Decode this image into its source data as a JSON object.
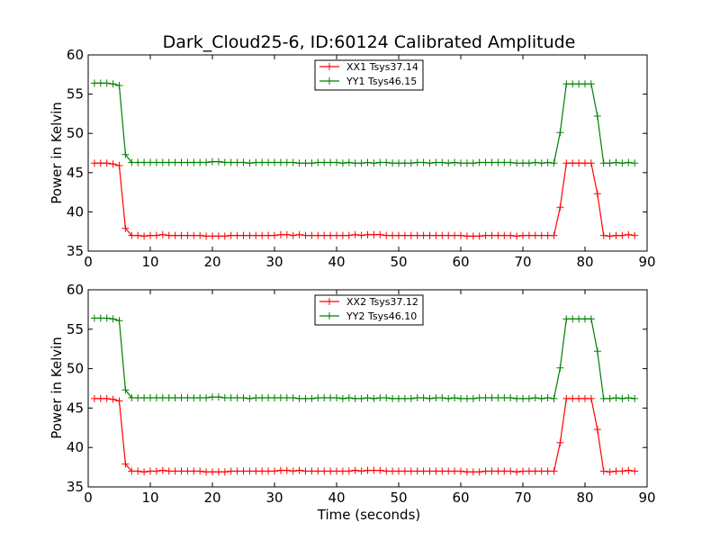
{
  "chart_data": [
    {
      "type": "line",
      "title": "Dark_Cloud25-6, ID:60124 Calibrated Amplitude",
      "xlabel": "",
      "ylabel": "Power in Kelvin",
      "xlim": [
        0,
        90
      ],
      "ylim": [
        35,
        60
      ],
      "xticks": [
        0,
        10,
        20,
        30,
        40,
        50,
        60,
        70,
        80,
        90
      ],
      "yticks": [
        35,
        40,
        45,
        50,
        55,
        60
      ],
      "grid": false,
      "legend_position": "top-center",
      "x": [
        1,
        2,
        3,
        4,
        5,
        6,
        7,
        8,
        9,
        10,
        11,
        12,
        13,
        14,
        15,
        16,
        17,
        18,
        19,
        20,
        21,
        22,
        23,
        24,
        25,
        26,
        27,
        28,
        29,
        30,
        31,
        32,
        33,
        34,
        35,
        36,
        37,
        38,
        39,
        40,
        41,
        42,
        43,
        44,
        45,
        46,
        47,
        48,
        49,
        50,
        51,
        52,
        53,
        54,
        55,
        56,
        57,
        58,
        59,
        60,
        61,
        62,
        63,
        64,
        65,
        66,
        67,
        68,
        69,
        70,
        71,
        72,
        73,
        74,
        75,
        76,
        77,
        78,
        79,
        80,
        81,
        82,
        83,
        84,
        85,
        86,
        87,
        88
      ],
      "series": [
        {
          "name": "XX1 Tsys37.14",
          "color": "#ff0000",
          "values": [
            46.2,
            46.2,
            46.2,
            46.1,
            45.9,
            37.9,
            37.0,
            37.0,
            36.9,
            37.0,
            37.0,
            37.1,
            37.0,
            37.0,
            37.0,
            37.0,
            37.0,
            37.0,
            36.9,
            36.9,
            36.9,
            36.9,
            37.0,
            37.0,
            37.0,
            37.0,
            37.0,
            37.0,
            37.0,
            37.0,
            37.1,
            37.1,
            37.0,
            37.1,
            37.0,
            37.0,
            37.0,
            37.0,
            37.0,
            37.0,
            37.0,
            37.0,
            37.1,
            37.0,
            37.1,
            37.1,
            37.1,
            37.0,
            37.0,
            37.0,
            37.0,
            37.0,
            37.0,
            37.0,
            37.0,
            37.0,
            37.0,
            37.0,
            37.0,
            37.0,
            36.9,
            36.9,
            36.9,
            37.0,
            37.0,
            37.0,
            37.0,
            37.0,
            36.9,
            37.0,
            37.0,
            37.0,
            37.0,
            37.0,
            37.0,
            40.6,
            46.2,
            46.2,
            46.2,
            46.2,
            46.2,
            42.3,
            37.0,
            36.9,
            37.0,
            37.0,
            37.1,
            37.0
          ]
        },
        {
          "name": "YY1 Tsys46.15",
          "color": "#008000",
          "values": [
            56.4,
            56.4,
            56.4,
            56.3,
            56.1,
            47.3,
            46.3,
            46.3,
            46.3,
            46.3,
            46.3,
            46.3,
            46.3,
            46.3,
            46.3,
            46.3,
            46.3,
            46.3,
            46.3,
            46.4,
            46.4,
            46.3,
            46.3,
            46.3,
            46.3,
            46.2,
            46.3,
            46.3,
            46.3,
            46.3,
            46.3,
            46.3,
            46.3,
            46.2,
            46.2,
            46.2,
            46.3,
            46.3,
            46.3,
            46.3,
            46.2,
            46.3,
            46.2,
            46.2,
            46.3,
            46.2,
            46.3,
            46.3,
            46.2,
            46.2,
            46.2,
            46.2,
            46.3,
            46.3,
            46.2,
            46.3,
            46.3,
            46.2,
            46.3,
            46.2,
            46.2,
            46.2,
            46.3,
            46.3,
            46.3,
            46.3,
            46.3,
            46.3,
            46.2,
            46.2,
            46.2,
            46.3,
            46.2,
            46.3,
            46.2,
            50.1,
            56.3,
            56.3,
            56.3,
            56.3,
            56.3,
            52.2,
            46.2,
            46.2,
            46.3,
            46.2,
            46.3,
            46.2
          ]
        }
      ]
    },
    {
      "type": "line",
      "title": "",
      "xlabel": "Time (seconds)",
      "ylabel": "Power in Kelvin",
      "xlim": [
        0,
        90
      ],
      "ylim": [
        35,
        60
      ],
      "xticks": [
        0,
        10,
        20,
        30,
        40,
        50,
        60,
        70,
        80,
        90
      ],
      "yticks": [
        35,
        40,
        45,
        50,
        55,
        60
      ],
      "grid": false,
      "legend_position": "top-center",
      "x": [
        1,
        2,
        3,
        4,
        5,
        6,
        7,
        8,
        9,
        10,
        11,
        12,
        13,
        14,
        15,
        16,
        17,
        18,
        19,
        20,
        21,
        22,
        23,
        24,
        25,
        26,
        27,
        28,
        29,
        30,
        31,
        32,
        33,
        34,
        35,
        36,
        37,
        38,
        39,
        40,
        41,
        42,
        43,
        44,
        45,
        46,
        47,
        48,
        49,
        50,
        51,
        52,
        53,
        54,
        55,
        56,
        57,
        58,
        59,
        60,
        61,
        62,
        63,
        64,
        65,
        66,
        67,
        68,
        69,
        70,
        71,
        72,
        73,
        74,
        75,
        76,
        77,
        78,
        79,
        80,
        81,
        82,
        83,
        84,
        85,
        86,
        87,
        88
      ],
      "series": [
        {
          "name": "XX2 Tsys37.12",
          "color": "#ff0000",
          "values": [
            46.2,
            46.2,
            46.2,
            46.1,
            45.9,
            37.9,
            37.0,
            37.0,
            36.9,
            37.0,
            37.0,
            37.1,
            37.0,
            37.0,
            37.0,
            37.0,
            37.0,
            37.0,
            36.9,
            36.9,
            36.9,
            36.9,
            37.0,
            37.0,
            37.0,
            37.0,
            37.0,
            37.0,
            37.0,
            37.0,
            37.1,
            37.1,
            37.0,
            37.1,
            37.0,
            37.0,
            37.0,
            37.0,
            37.0,
            37.0,
            37.0,
            37.0,
            37.1,
            37.0,
            37.1,
            37.1,
            37.1,
            37.0,
            37.0,
            37.0,
            37.0,
            37.0,
            37.0,
            37.0,
            37.0,
            37.0,
            37.0,
            37.0,
            37.0,
            37.0,
            36.9,
            36.9,
            36.9,
            37.0,
            37.0,
            37.0,
            37.0,
            37.0,
            36.9,
            37.0,
            37.0,
            37.0,
            37.0,
            37.0,
            37.0,
            40.6,
            46.2,
            46.2,
            46.2,
            46.2,
            46.2,
            42.3,
            37.0,
            36.9,
            37.0,
            37.0,
            37.1,
            37.0
          ]
        },
        {
          "name": "YY2 Tsys46.10",
          "color": "#008000",
          "values": [
            56.4,
            56.4,
            56.4,
            56.3,
            56.1,
            47.3,
            46.3,
            46.3,
            46.3,
            46.3,
            46.3,
            46.3,
            46.3,
            46.3,
            46.3,
            46.3,
            46.3,
            46.3,
            46.3,
            46.4,
            46.4,
            46.3,
            46.3,
            46.3,
            46.3,
            46.2,
            46.3,
            46.3,
            46.3,
            46.3,
            46.3,
            46.3,
            46.3,
            46.2,
            46.2,
            46.2,
            46.3,
            46.3,
            46.3,
            46.3,
            46.2,
            46.3,
            46.2,
            46.2,
            46.3,
            46.2,
            46.3,
            46.3,
            46.2,
            46.2,
            46.2,
            46.2,
            46.3,
            46.3,
            46.2,
            46.3,
            46.3,
            46.2,
            46.3,
            46.2,
            46.2,
            46.2,
            46.3,
            46.3,
            46.3,
            46.3,
            46.3,
            46.3,
            46.2,
            46.2,
            46.2,
            46.3,
            46.2,
            46.3,
            46.2,
            50.1,
            56.3,
            56.3,
            56.3,
            56.3,
            56.3,
            52.2,
            46.2,
            46.2,
            46.3,
            46.2,
            46.3,
            46.2
          ]
        }
      ]
    }
  ]
}
